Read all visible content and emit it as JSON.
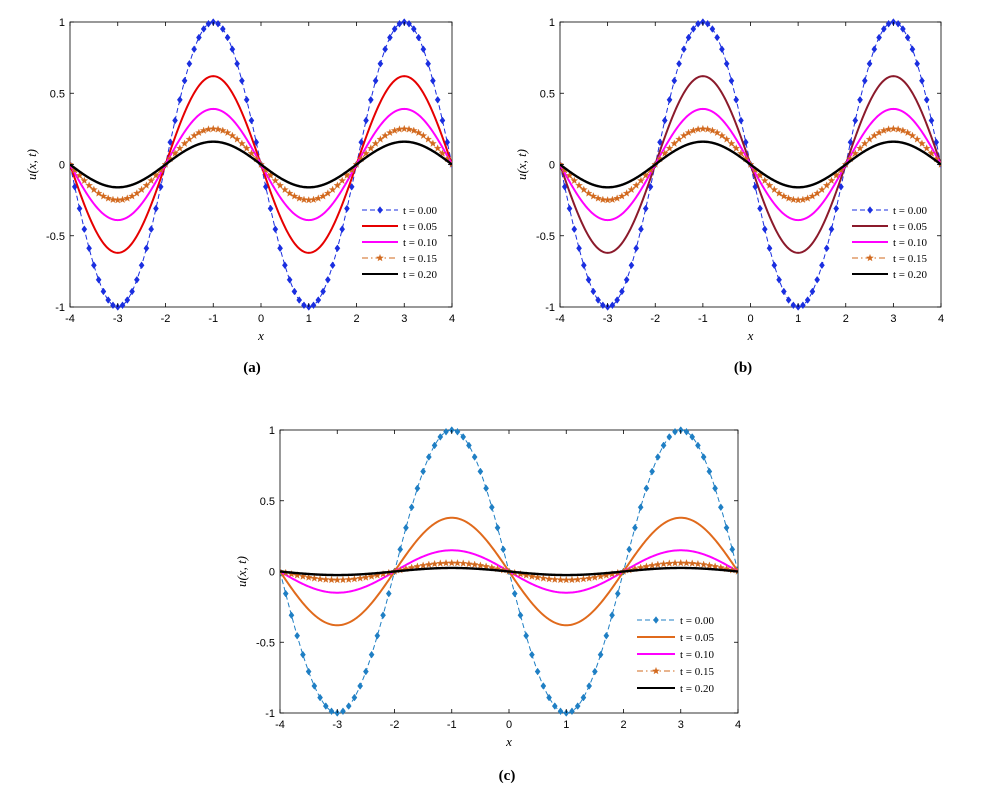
{
  "chart_data": [
    {
      "id": "a",
      "type": "line",
      "caption": "(a)",
      "xlabel": "x",
      "ylabel": "u(x, t)",
      "xlim": [
        -4,
        4
      ],
      "ylim": [
        -1,
        1
      ],
      "xticks": [
        -4,
        -3,
        -2,
        -1,
        0,
        1,
        2,
        3,
        4
      ],
      "yticks": [
        -1,
        -0.5,
        0,
        0.5,
        1
      ],
      "ytick_labels": [
        "-1",
        "-0.5",
        "0",
        "0.5",
        "1"
      ],
      "legend_position": "bottom-right",
      "function": "u(x,t) = A(t) * sin(pi * x / 2 + pi)",
      "series": [
        {
          "name": "t = 0.00",
          "amplitude": 1.0,
          "color": "#1a2ee0",
          "style": "dashed",
          "marker": "diamond"
        },
        {
          "name": "t = 0.05",
          "amplitude": 0.62,
          "color": "#e60000",
          "style": "solid",
          "marker": "none"
        },
        {
          "name": "t = 0.10",
          "amplitude": 0.39,
          "color": "#ff00ff",
          "style": "solid",
          "marker": "none"
        },
        {
          "name": "t = 0.15",
          "amplitude": 0.25,
          "color": "#d2691e",
          "style": "dashdot",
          "marker": "star"
        },
        {
          "name": "t = 0.20",
          "amplitude": 0.16,
          "color": "#000000",
          "style": "solid",
          "marker": "none"
        }
      ]
    },
    {
      "id": "b",
      "type": "line",
      "caption": "(b)",
      "xlabel": "x",
      "ylabel": "u(x, t)",
      "xlim": [
        -4,
        4
      ],
      "ylim": [
        -1,
        1
      ],
      "xticks": [
        -4,
        -3,
        -2,
        -1,
        0,
        1,
        2,
        3,
        4
      ],
      "yticks": [
        -1,
        -0.5,
        0,
        0.5,
        1
      ],
      "ytick_labels": [
        "-1",
        "-0.5",
        "0",
        "0.5",
        "1"
      ],
      "legend_position": "bottom-right",
      "function": "u(x,t) = A(t) * sin(pi * x / 2 + pi)",
      "series": [
        {
          "name": "t = 0.00",
          "amplitude": 1.0,
          "color": "#1a2ee0",
          "style": "dashed",
          "marker": "diamond"
        },
        {
          "name": "t = 0.05",
          "amplitude": 0.62,
          "color": "#8b1a2b",
          "style": "solid",
          "marker": "none"
        },
        {
          "name": "t = 0.10",
          "amplitude": 0.39,
          "color": "#ff00ff",
          "style": "solid",
          "marker": "none"
        },
        {
          "name": "t = 0.15",
          "amplitude": 0.25,
          "color": "#d2691e",
          "style": "dashdot",
          "marker": "star"
        },
        {
          "name": "t = 0.20",
          "amplitude": 0.16,
          "color": "#000000",
          "style": "solid",
          "marker": "none"
        }
      ]
    },
    {
      "id": "c",
      "type": "line",
      "caption": "(c)",
      "xlabel": "x",
      "ylabel": "u(x, t)",
      "xlim": [
        -4,
        4
      ],
      "ylim": [
        -1,
        1
      ],
      "xticks": [
        -4,
        -3,
        -2,
        -1,
        0,
        1,
        2,
        3,
        4
      ],
      "yticks": [
        -1,
        -0.5,
        0,
        0.5,
        1
      ],
      "ytick_labels": [
        "-1",
        "-0.5",
        "0",
        "0.5",
        "1"
      ],
      "legend_position": "bottom-right",
      "function": "u(x,t) = A(t) * sin(pi * x / 2 + pi)",
      "series": [
        {
          "name": "t = 0.00",
          "amplitude": 1.0,
          "color": "#1f7fc4",
          "style": "dashed",
          "marker": "diamond"
        },
        {
          "name": "t = 0.05",
          "amplitude": 0.38,
          "color": "#e06a1c",
          "style": "solid",
          "marker": "none"
        },
        {
          "name": "t = 0.10",
          "amplitude": 0.15,
          "color": "#ff00ff",
          "style": "solid",
          "marker": "none"
        },
        {
          "name": "t = 0.15",
          "amplitude": 0.06,
          "color": "#d2691e",
          "style": "dashdot",
          "marker": "star"
        },
        {
          "name": "t = 0.20",
          "amplitude": 0.025,
          "color": "#000000",
          "style": "solid",
          "marker": "none"
        }
      ]
    }
  ]
}
